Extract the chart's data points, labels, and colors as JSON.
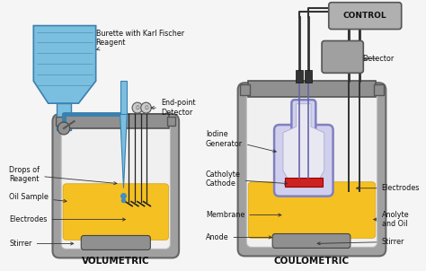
{
  "background_color": "#f5f5f5",
  "volumetric_label": "VOLUMETRIC",
  "coulometric_label": "COULOMETRIC",
  "control_label": "CONTROL",
  "colors": {
    "blue_burette": "#7abfdf",
    "blue_liquid": "#a8d4e8",
    "yellow_liquid": "#f5c022",
    "gray_vessel_outer": "#a0a0a0",
    "gray_vessel_inner": "#d0d0d0",
    "gray_dark": "#787878",
    "gray_cap": "#909090",
    "purple_outline": "#8080c0",
    "purple_fill": "#c8c8e8",
    "red_membrane": "#cc2222",
    "white": "#f0f0f0",
    "black": "#1a1a1a",
    "control_box": "#b0b0b0",
    "blue_drop": "#4090c0",
    "stirrer": "#909090"
  }
}
